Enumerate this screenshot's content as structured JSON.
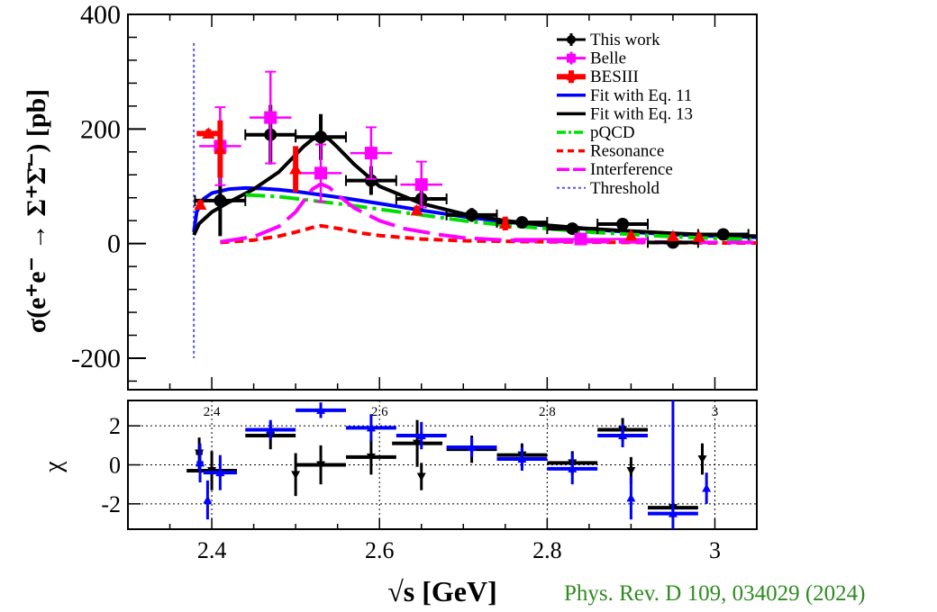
{
  "chart_data": [
    {
      "type": "scatter",
      "ylabel": "σ(e⁺e⁻ → Σ⁺Σ̄⁻) [pb]",
      "xlim": [
        2.3,
        3.05
      ],
      "ylim": [
        -255,
        400
      ],
      "yticks": [
        "400",
        "200",
        "0",
        "-200"
      ],
      "legend_position": "top-right",
      "legend": [
        {
          "label": "This work",
          "color": "#000000",
          "style": "marker-circle"
        },
        {
          "label": "Belle",
          "color": "#ff00ff",
          "style": "marker-square"
        },
        {
          "label": "BESIII",
          "color": "#ff0000",
          "style": "marker-triangle"
        },
        {
          "label": "Fit with Eq. 11",
          "color": "#0000ff",
          "style": "solid"
        },
        {
          "label": "Fit with Eq. 13",
          "color": "#000000",
          "style": "solid"
        },
        {
          "label": "pQCD",
          "color": "#00dd00",
          "style": "dashdot"
        },
        {
          "label": "Resonance",
          "color": "#ff0000",
          "style": "dashed"
        },
        {
          "label": "Interference",
          "color": "#ff00ff",
          "style": "longdash"
        },
        {
          "label": "Threshold",
          "color": "#5555ee",
          "style": "dotted"
        }
      ],
      "series": [
        {
          "name": "This work",
          "color": "#000000",
          "marker": "circle",
          "points": [
            {
              "x": 2.41,
              "y": 75,
              "xerr": 0.03,
              "yerr": 62
            },
            {
              "x": 2.47,
              "y": 190,
              "xerr": 0.03,
              "yerr": 52
            },
            {
              "x": 2.53,
              "y": 186,
              "xerr": 0.03,
              "yerr": 40
            },
            {
              "x": 2.59,
              "y": 110,
              "xerr": 0.03,
              "yerr": 25
            },
            {
              "x": 2.65,
              "y": 78,
              "xerr": 0.03,
              "yerr": 18
            },
            {
              "x": 2.71,
              "y": 50,
              "xerr": 0.03,
              "yerr": 12
            },
            {
              "x": 2.77,
              "y": 37,
              "xerr": 0.03,
              "yerr": 9
            },
            {
              "x": 2.83,
              "y": 26,
              "xerr": 0.03,
              "yerr": 8
            },
            {
              "x": 2.89,
              "y": 34,
              "xerr": 0.03,
              "yerr": 8
            },
            {
              "x": 2.95,
              "y": 2,
              "xerr": 0.03,
              "yerr": 10
            },
            {
              "x": 3.01,
              "y": 16,
              "xerr": 0.03,
              "yerr": 6
            }
          ]
        },
        {
          "name": "Belle",
          "color": "#ff00ff",
          "marker": "square",
          "points": [
            {
              "x": 2.41,
              "y": 170,
              "xerr": 0.025,
              "yerr": 68
            },
            {
              "x": 2.47,
              "y": 220,
              "xerr": 0.025,
              "yerr": 80
            },
            {
              "x": 2.53,
              "y": 123,
              "xerr": 0.025,
              "yerr": 50
            },
            {
              "x": 2.59,
              "y": 158,
              "xerr": 0.025,
              "yerr": 45
            },
            {
              "x": 2.65,
              "y": 103,
              "xerr": 0.025,
              "yerr": 40
            },
            {
              "x": 2.84,
              "y": 8,
              "xerr": 0.08,
              "yerr": 5
            }
          ]
        },
        {
          "name": "BESIII",
          "color": "#ff0000",
          "marker": "triangle",
          "points": [
            {
              "x": 2.3864,
              "y": 68,
              "xerr": 0.004,
              "yerr": 8
            },
            {
              "x": 2.396,
              "y": 192,
              "xerr": 0.014,
              "yerr": 8
            },
            {
              "x": 2.41,
              "y": 165,
              "xerr": 0.0,
              "yerr": 50
            },
            {
              "x": 2.5,
              "y": 130,
              "xerr": 0.0,
              "yerr": 40
            },
            {
              "x": 2.6444,
              "y": 58,
              "xerr": 0.0,
              "yerr": 8
            },
            {
              "x": 2.75,
              "y": 35,
              "xerr": 0.0,
              "yerr": 12
            },
            {
              "x": 2.9,
              "y": 14,
              "xerr": 0.0,
              "yerr": 6
            },
            {
              "x": 2.95,
              "y": 13,
              "xerr": 0.0,
              "yerr": 5
            },
            {
              "x": 2.981,
              "y": 12,
              "xerr": 0.0,
              "yerr": 5
            }
          ]
        }
      ],
      "curves": [
        {
          "name": "Fit with Eq. 11",
          "color": "#0000ff",
          "style": "solid",
          "x": [
            2.3786,
            2.382,
            2.39,
            2.4,
            2.42,
            2.44,
            2.46,
            2.48,
            2.5,
            2.53,
            2.56,
            2.6,
            2.65,
            2.7,
            2.75,
            2.8,
            2.85,
            2.9,
            2.95,
            3.0,
            3.05
          ],
          "y": [
            20,
            55,
            78,
            88,
            95,
            97,
            96,
            94,
            91,
            85,
            79,
            70,
            58,
            47,
            38,
            31,
            25,
            20,
            16,
            13,
            11
          ]
        },
        {
          "name": "Fit with Eq. 13",
          "color": "#000000",
          "style": "solid",
          "x": [
            2.3786,
            2.385,
            2.4,
            2.42,
            2.45,
            2.48,
            2.5,
            2.51,
            2.52,
            2.53,
            2.54,
            2.55,
            2.57,
            2.6,
            2.65,
            2.7,
            2.75,
            2.8,
            2.85,
            2.9,
            2.95,
            3.0,
            3.05
          ],
          "y": [
            15,
            35,
            55,
            72,
            95,
            125,
            155,
            170,
            182,
            186,
            182,
            168,
            138,
            100,
            70,
            52,
            40,
            32,
            26,
            22,
            18,
            15,
            13
          ]
        },
        {
          "name": "pQCD",
          "color": "#00dd00",
          "style": "dashdot",
          "x": [
            2.44,
            2.48,
            2.52,
            2.56,
            2.6,
            2.65,
            2.7,
            2.75,
            2.8,
            2.85,
            2.9,
            2.95,
            3.0,
            3.05
          ],
          "y": [
            85,
            82,
            75,
            68,
            60,
            50,
            40,
            32,
            26,
            20,
            16,
            12,
            9,
            7
          ]
        },
        {
          "name": "Resonance",
          "color": "#ff0000",
          "style": "dashed",
          "x": [
            2.41,
            2.45,
            2.48,
            2.5,
            2.52,
            2.53,
            2.54,
            2.56,
            2.58,
            2.6,
            2.65,
            2.7,
            2.75,
            2.8,
            2.9,
            3.0,
            3.05
          ],
          "y": [
            2,
            6,
            13,
            20,
            28,
            31,
            29,
            24,
            18,
            14,
            8,
            5,
            4,
            3,
            2,
            1,
            1
          ]
        },
        {
          "name": "Interference",
          "color": "#ff00ff",
          "style": "longdash",
          "x": [
            2.41,
            2.45,
            2.48,
            2.5,
            2.51,
            2.52,
            2.53,
            2.54,
            2.55,
            2.57,
            2.6,
            2.63,
            2.67,
            2.7,
            2.75,
            2.8,
            2.9,
            3.0,
            3.05
          ],
          "y": [
            3,
            12,
            30,
            55,
            75,
            95,
            104,
            98,
            85,
            62,
            40,
            26,
            16,
            10,
            6,
            4,
            3,
            2,
            2
          ]
        }
      ],
      "threshold_x": 2.3786
    },
    {
      "type": "scatter",
      "ylabel": "χ",
      "xlabel": "√s [GeV]",
      "xlim": [
        2.3,
        3.05
      ],
      "ylim": [
        -3.3,
        3.3
      ],
      "xticks": [
        "2.4",
        "2.6",
        "2.8",
        "3"
      ],
      "yticks": [
        "2",
        "0",
        "-2"
      ],
      "top_labels": [
        "2.4",
        "2.6",
        "2.8",
        "3"
      ],
      "series": [
        {
          "name": "black residuals",
          "color": "#000000",
          "points": [
            {
              "x": 2.385,
              "y": 0.6,
              "xerr": 0.004,
              "yerr": 0.8
            },
            {
              "x": 2.4,
              "y": -0.3,
              "xerr": 0.03,
              "yerr": 1.0
            },
            {
              "x": 2.47,
              "y": 1.5,
              "xerr": 0.03,
              "yerr": 0.7
            },
            {
              "x": 2.5,
              "y": -0.5,
              "xerr": 0.0,
              "yerr": 1.1
            },
            {
              "x": 2.53,
              "y": 0.0,
              "xerr": 0.03,
              "yerr": 1.0
            },
            {
              "x": 2.59,
              "y": 0.4,
              "xerr": 0.03,
              "yerr": 0.9
            },
            {
              "x": 2.645,
              "y": 1.1,
              "xerr": 0.03,
              "yerr": 1.2
            },
            {
              "x": 2.65,
              "y": -0.6,
              "xerr": 0.0,
              "yerr": 0.7
            },
            {
              "x": 2.71,
              "y": 0.8,
              "xerr": 0.03,
              "yerr": 0.7
            },
            {
              "x": 2.77,
              "y": 0.5,
              "xerr": 0.03,
              "yerr": 0.6
            },
            {
              "x": 2.83,
              "y": 0.1,
              "xerr": 0.03,
              "yerr": 0.6
            },
            {
              "x": 2.89,
              "y": 1.8,
              "xerr": 0.03,
              "yerr": 0.6
            },
            {
              "x": 2.9,
              "y": -0.3,
              "xerr": 0.0,
              "yerr": 0.7
            },
            {
              "x": 2.95,
              "y": -2.2,
              "xerr": 0.03,
              "yerr": 0.4
            },
            {
              "x": 2.985,
              "y": 0.3,
              "xerr": 0.0,
              "yerr": 0.8
            }
          ]
        },
        {
          "name": "blue residuals",
          "color": "#0000ff",
          "points": [
            {
              "x": 2.386,
              "y": 0.1,
              "xerr": 0.004,
              "yerr": 1.0
            },
            {
              "x": 2.395,
              "y": -1.8,
              "xerr": 0.0,
              "yerr": 1.0
            },
            {
              "x": 2.41,
              "y": -0.4,
              "xerr": 0.02,
              "yerr": 0.9
            },
            {
              "x": 2.47,
              "y": 1.8,
              "xerr": 0.03,
              "yerr": 0.5
            },
            {
              "x": 2.53,
              "y": 2.8,
              "xerr": 0.03,
              "yerr": 0.4
            },
            {
              "x": 2.59,
              "y": 1.9,
              "xerr": 0.03,
              "yerr": 0.7
            },
            {
              "x": 2.65,
              "y": 1.5,
              "xerr": 0.03,
              "yerr": 0.7
            },
            {
              "x": 2.71,
              "y": 0.9,
              "xerr": 0.03,
              "yerr": 0.5
            },
            {
              "x": 2.77,
              "y": 0.3,
              "xerr": 0.03,
              "yerr": 0.6
            },
            {
              "x": 2.83,
              "y": -0.2,
              "xerr": 0.03,
              "yerr": 0.8
            },
            {
              "x": 2.89,
              "y": 1.5,
              "xerr": 0.03,
              "yerr": 0.6
            },
            {
              "x": 2.9,
              "y": -1.7,
              "xerr": 0.0,
              "yerr": 1.1
            },
            {
              "x": 2.95,
              "y": -2.5,
              "xerr": 0.03,
              "yerr": 5.9
            },
            {
              "x": 2.99,
              "y": -1.2,
              "xerr": 0.0,
              "yerr": 0.8
            }
          ]
        }
      ]
    }
  ],
  "citation": "Phys. Rev. D 109, 034029 (2024)"
}
